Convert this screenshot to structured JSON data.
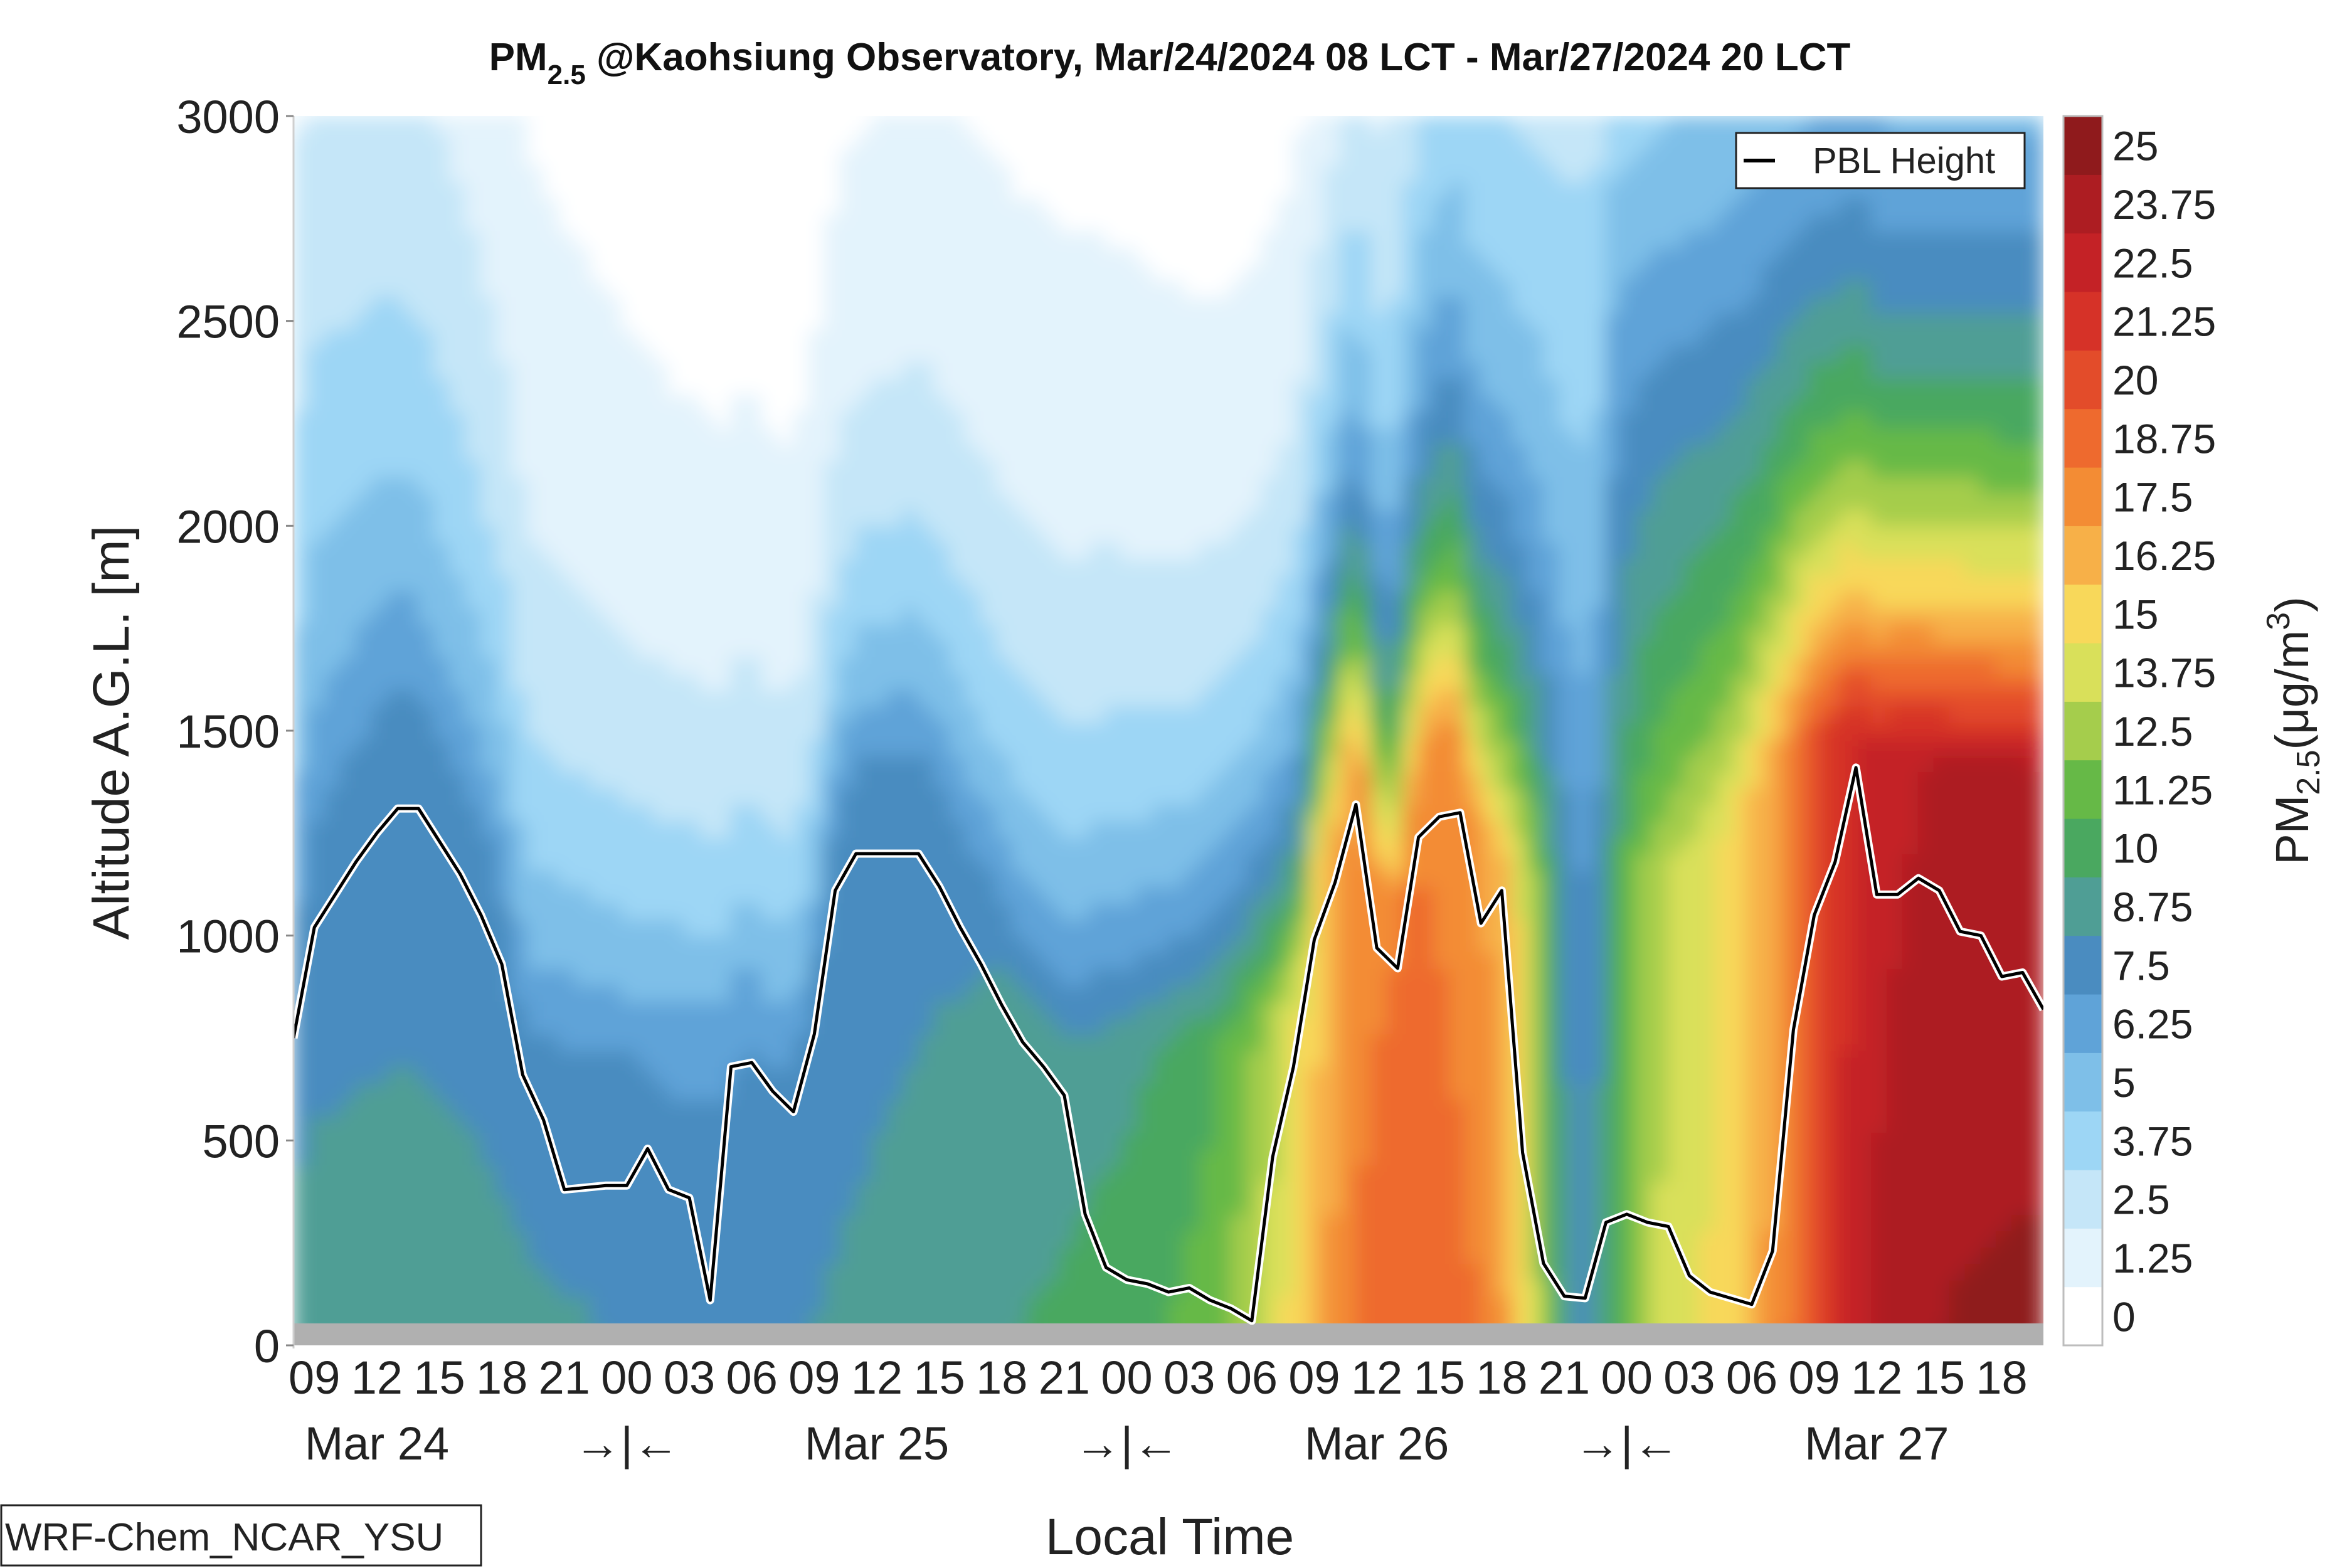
{
  "chart_data": {
    "type": "heatmap",
    "title": {
      "prefix": "PM",
      "subscript": "2.5",
      "rest": " @Kaohsiung Observatory, Mar/24/2024 08 LCT - Mar/27/2024 20 LCT"
    },
    "xlabel": "Local Time",
    "ylabel": "Altitude A.G.L. [m]",
    "colorbar_label": {
      "prefix": "PM",
      "subscript": "2.5",
      "unit": "(μg/m",
      "unit_sup": "3",
      "unit_end": ")"
    },
    "ylim": [
      0,
      3000
    ],
    "y_ticks": [
      "0",
      "500",
      "1000",
      "1500",
      "2000",
      "2500",
      "3000"
    ],
    "x_ticks": [
      "09",
      "12",
      "15",
      "18",
      "21",
      "00",
      "03",
      "06",
      "09",
      "12",
      "15",
      "18",
      "21",
      "00",
      "03",
      "06",
      "09",
      "12",
      "15",
      "18",
      "21",
      "00",
      "03",
      "06",
      "09",
      "12",
      "15",
      "18"
    ],
    "date_labels": [
      "Mar 24",
      "→|←",
      "Mar 25",
      "→|←",
      "Mar 26",
      "→|←",
      "Mar 27"
    ],
    "colorbar_ticks": [
      "0",
      "1.25",
      "2.5",
      "3.75",
      "5",
      "6.25",
      "7.5",
      "8.75",
      "10",
      "11.25",
      "12.5",
      "13.75",
      "15",
      "16.25",
      "17.5",
      "18.75",
      "20",
      "21.25",
      "22.5",
      "23.75",
      "25"
    ],
    "colorbar_colors": [
      "#ffffff",
      "#e3f3fc",
      "#c5e6f8",
      "#9dd6f5",
      "#7ebfe8",
      "#5fa3d8",
      "#4a8cc0",
      "#4f9e95",
      "#4aa860",
      "#66b947",
      "#a5cd4c",
      "#d9e05a",
      "#f8d85a",
      "#f7b048",
      "#f38c34",
      "#ee6a2e",
      "#e34c2a",
      "#d63228",
      "#c42226",
      "#ad1d22",
      "#8f1a1c"
    ],
    "legend": {
      "entry": "PBL Height",
      "placement": "top-right"
    },
    "source_label": "WRF-Chem_NCAR_YSU",
    "pbl_height": {
      "hours": [
        0,
        1,
        2,
        3,
        4,
        5,
        6,
        7,
        8,
        9,
        10,
        11,
        12,
        13,
        14,
        15,
        16,
        17,
        18,
        19,
        20,
        21,
        22,
        23,
        24,
        25,
        26,
        27,
        28,
        29,
        30,
        31,
        32,
        33,
        34,
        35,
        36,
        37,
        38,
        39,
        40,
        41,
        42,
        43,
        44,
        45,
        46,
        47,
        48,
        49,
        50,
        51,
        52,
        53,
        54,
        55,
        56,
        57,
        58,
        59,
        60,
        61,
        62,
        63,
        64,
        65,
        66,
        67,
        68,
        69,
        70,
        71,
        72,
        73,
        74,
        75,
        76,
        77,
        78,
        79,
        80,
        81,
        82,
        83,
        84
      ],
      "values": [
        750,
        1020,
        1100,
        1180,
        1250,
        1310,
        1310,
        1230,
        1150,
        1050,
        930,
        660,
        550,
        380,
        385,
        390,
        390,
        480,
        380,
        360,
        110,
        680,
        690,
        620,
        570,
        760,
        1110,
        1200,
        1200,
        1200,
        1200,
        1120,
        1020,
        930,
        830,
        740,
        680,
        610,
        320,
        190,
        160,
        150,
        130,
        140,
        110,
        90,
        60,
        460,
        680,
        990,
        1130,
        1320,
        970,
        920,
        1240,
        1290,
        1300,
        1030,
        1110,
        470,
        200,
        120,
        115,
        300,
        320,
        300,
        290,
        170,
        130,
        115,
        100,
        230,
        770,
        1050,
        1180,
        1410,
        1100,
        1100,
        1140,
        1110,
        1010,
        1000,
        900,
        910,
        820
      ],
      "note": "hour index from Mar/24/2024 08 LCT"
    }
  }
}
